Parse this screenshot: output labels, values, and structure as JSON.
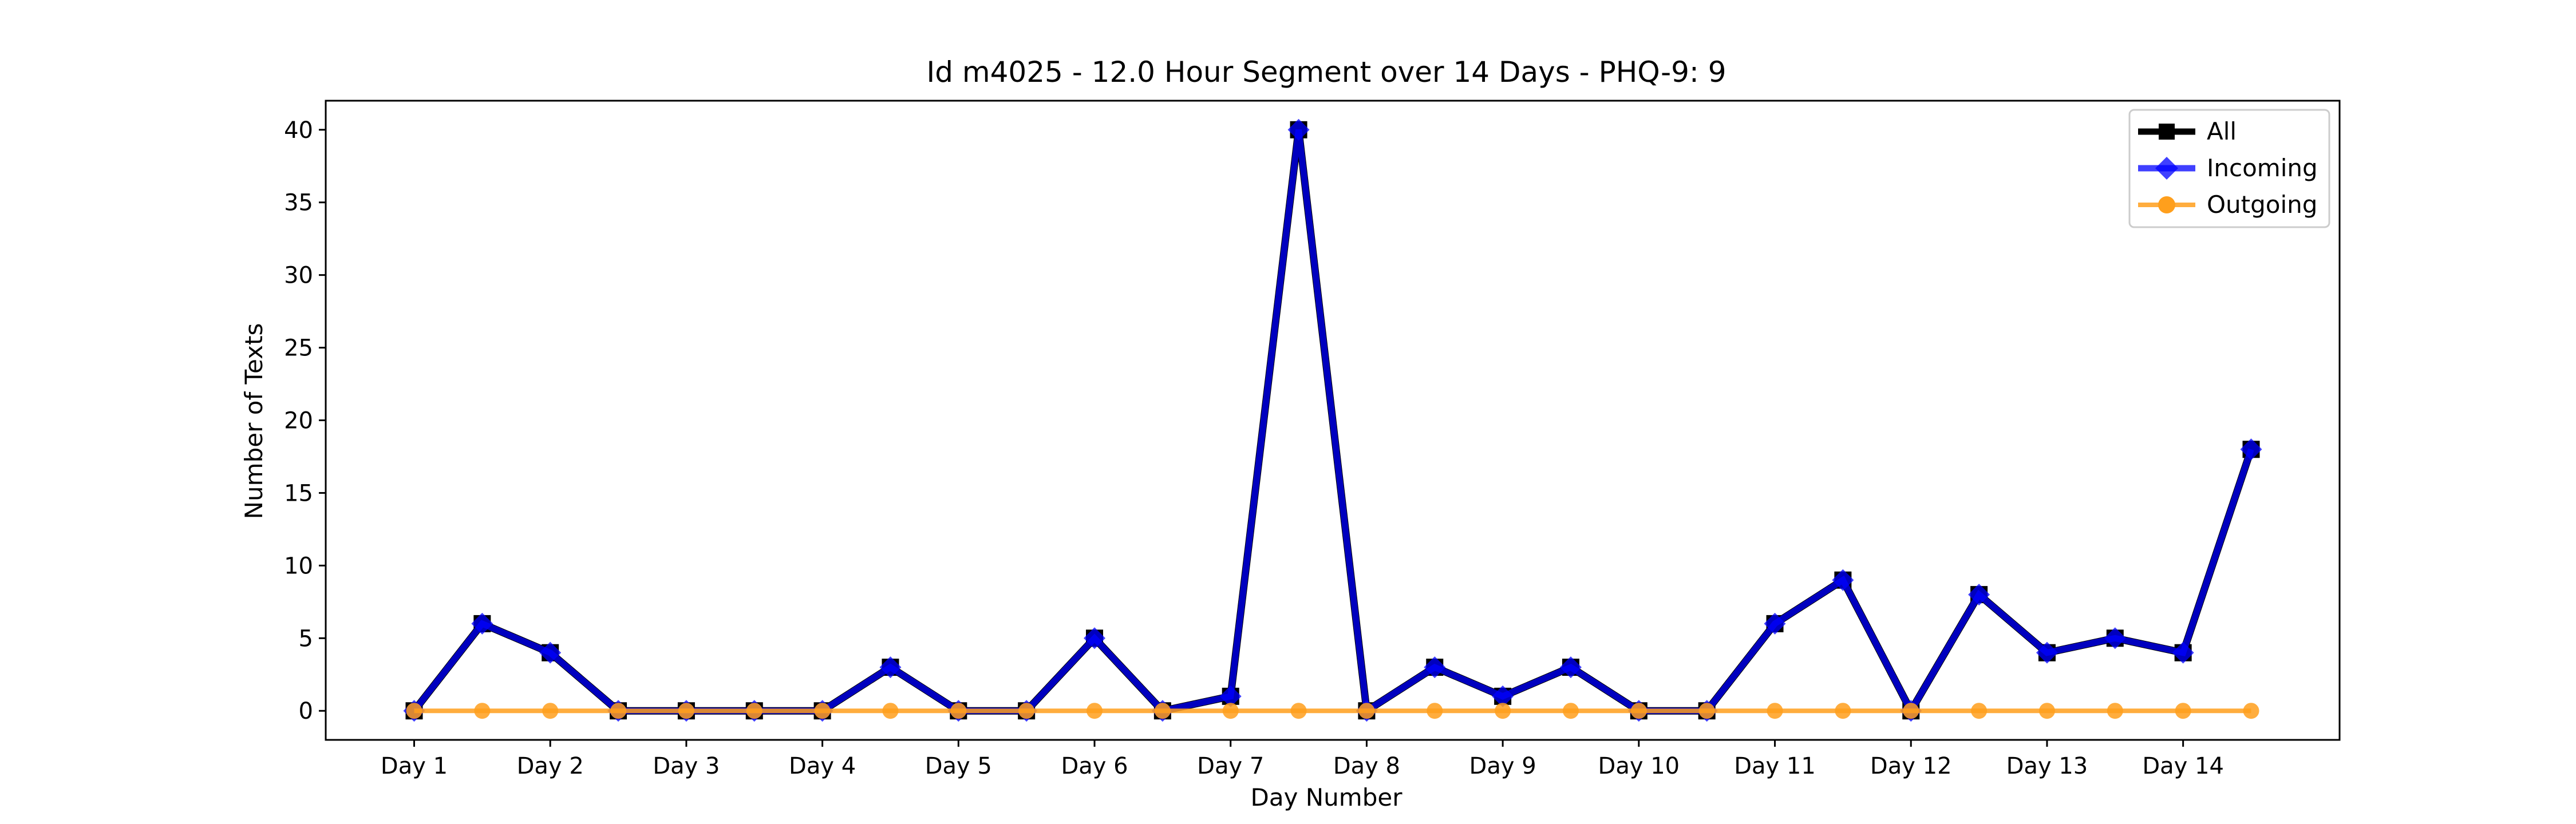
{
  "chart_data": {
    "type": "line",
    "title": "Id m4025 - 12.0 Hour Segment over 14 Days - PHQ-9: 9",
    "xlabel": "Day Number",
    "ylabel": "Number of Texts",
    "tick_labels": [
      "Day 1",
      "Day 2",
      "Day 3",
      "Day 4",
      "Day 5",
      "Day 6",
      "Day 7",
      "Day 8",
      "Day 9",
      "Day 10",
      "Day 11",
      "Day 12",
      "Day 13",
      "Day 14"
    ],
    "yticks": [
      0,
      5,
      10,
      15,
      20,
      25,
      30,
      35,
      40
    ],
    "xlim": [
      0.35,
      15.15
    ],
    "ylim": [
      -2,
      42
    ],
    "grid": false,
    "legend_position": "top-right",
    "x": [
      1,
      1.5,
      2,
      2.5,
      3,
      3.5,
      4,
      4.5,
      5,
      5.5,
      6,
      6.5,
      7,
      7.5,
      8,
      8.5,
      9,
      9.5,
      10,
      10.5,
      11,
      11.5,
      12,
      12.5,
      13,
      13.5,
      14,
      14.5
    ],
    "series": [
      {
        "name": "All",
        "color": "#000000",
        "marker": "square",
        "values": [
          0,
          6,
          4,
          0,
          0,
          0,
          0,
          3,
          0,
          0,
          5,
          0,
          1,
          40,
          0,
          3,
          1,
          3,
          0,
          0,
          6,
          9,
          0,
          8,
          4,
          5,
          4,
          18
        ]
      },
      {
        "name": "Incoming",
        "color": "#0000ff",
        "marker": "diamond",
        "values": [
          0,
          6,
          4,
          0,
          0,
          0,
          0,
          3,
          0,
          0,
          5,
          0,
          1,
          40,
          0,
          3,
          1,
          3,
          0,
          0,
          6,
          9,
          0,
          8,
          4,
          5,
          4,
          18
        ]
      },
      {
        "name": "Outgoing",
        "color": "#ff9f1c",
        "marker": "circle",
        "values": [
          0,
          0,
          0,
          0,
          0,
          0,
          0,
          0,
          0,
          0,
          0,
          0,
          0,
          0,
          0,
          0,
          0,
          0,
          0,
          0,
          0,
          0,
          0,
          0,
          0,
          0,
          0,
          0
        ]
      }
    ]
  }
}
